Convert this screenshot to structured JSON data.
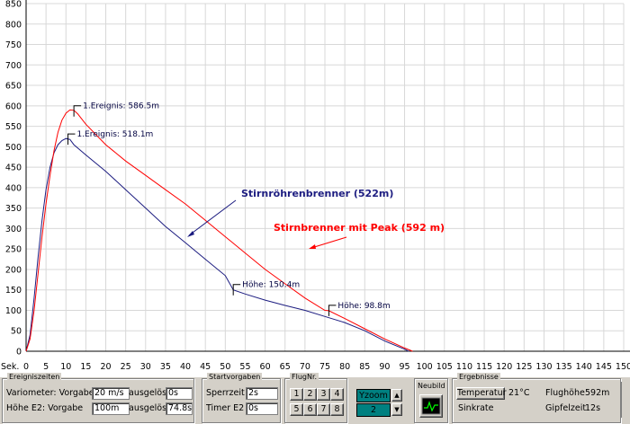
{
  "chart_data": {
    "type": "line",
    "x_axis_unit": "Sek.",
    "xlim": [
      0,
      150
    ],
    "ylim": [
      0,
      850
    ],
    "x_ticks": [
      0,
      5,
      10,
      15,
      20,
      25,
      30,
      35,
      40,
      45,
      50,
      55,
      60,
      65,
      70,
      75,
      80,
      85,
      90,
      95,
      100,
      105,
      110,
      115,
      120,
      125,
      130,
      135,
      140,
      145,
      150
    ],
    "y_ticks": [
      0,
      50,
      100,
      150,
      200,
      250,
      300,
      350,
      400,
      450,
      500,
      550,
      600,
      650,
      700,
      750,
      800,
      850
    ],
    "grid": true,
    "series": [
      {
        "name": "Stirnröhrenbrenner (522m)",
        "color": "#1c1c80",
        "points": [
          [
            0,
            0
          ],
          [
            1,
            40
          ],
          [
            2,
            130
          ],
          [
            3,
            230
          ],
          [
            4,
            320
          ],
          [
            5,
            395
          ],
          [
            6,
            450
          ],
          [
            7,
            485
          ],
          [
            8,
            505
          ],
          [
            9,
            515
          ],
          [
            10,
            520
          ],
          [
            11,
            518
          ],
          [
            12,
            505
          ],
          [
            15,
            480
          ],
          [
            20,
            440
          ],
          [
            25,
            395
          ],
          [
            30,
            350
          ],
          [
            35,
            305
          ],
          [
            40,
            265
          ],
          [
            45,
            225
          ],
          [
            50,
            185
          ],
          [
            52,
            150
          ],
          [
            55,
            140
          ],
          [
            60,
            125
          ],
          [
            65,
            112
          ],
          [
            70,
            100
          ],
          [
            75,
            85
          ],
          [
            80,
            70
          ],
          [
            85,
            50
          ],
          [
            90,
            25
          ],
          [
            95,
            5
          ],
          [
            96,
            0
          ]
        ]
      },
      {
        "name": "Stirnbrenner mit Peak (592 m)",
        "color": "#ff0000",
        "points": [
          [
            0,
            0
          ],
          [
            1,
            30
          ],
          [
            2,
            100
          ],
          [
            3,
            190
          ],
          [
            4,
            280
          ],
          [
            5,
            360
          ],
          [
            6,
            430
          ],
          [
            7,
            490
          ],
          [
            8,
            535
          ],
          [
            9,
            565
          ],
          [
            10,
            582
          ],
          [
            11,
            590
          ],
          [
            12,
            589
          ],
          [
            13,
            580
          ],
          [
            15,
            555
          ],
          [
            20,
            505
          ],
          [
            25,
            465
          ],
          [
            30,
            430
          ],
          [
            35,
            395
          ],
          [
            40,
            360
          ],
          [
            45,
            320
          ],
          [
            50,
            280
          ],
          [
            55,
            240
          ],
          [
            60,
            200
          ],
          [
            65,
            165
          ],
          [
            70,
            130
          ],
          [
            75,
            100
          ],
          [
            76,
            99
          ],
          [
            80,
            80
          ],
          [
            85,
            55
          ],
          [
            90,
            30
          ],
          [
            95,
            8
          ],
          [
            97,
            0
          ]
        ]
      }
    ],
    "annotations": [
      {
        "text": "1.Ereignis: 586.5m",
        "x": 12,
        "y": 587
      },
      {
        "text": "1.Ereignis: 518.1m",
        "x": 10.5,
        "y": 518
      },
      {
        "text": "Höhe: 150.4m",
        "x": 52,
        "y": 150
      },
      {
        "text": "Höhe: 98.8m",
        "x": 76,
        "y": 99
      }
    ]
  },
  "ereigniszeiten": {
    "title": "Ereigniszeiten",
    "row1_label": "Variometer: Vorgabe",
    "row1_value": "20 m/s",
    "row1_ausgeloest_label": "ausgelöst",
    "row1_ausgeloest_value": "0s",
    "row2_label": "Höhe E2: Vorgabe",
    "row2_value": "100m",
    "row2_ausgeloest_label": "ausgelöst",
    "row2_ausgeloest_value": "74.8s"
  },
  "startvorgaben": {
    "title": "Startvorgaben",
    "sperrzeit_label": "Sperrzeit",
    "sperrzeit_value": "2s",
    "timer_label": "Timer E2",
    "timer_value": "0s"
  },
  "flugnr": {
    "title": "FlugNr.",
    "buttons": [
      "1",
      "2",
      "3",
      "4",
      "5",
      "6",
      "7",
      "8"
    ]
  },
  "yzoom": {
    "label": "Yzoom",
    "value": "2"
  },
  "neubild": {
    "label": "Neubild"
  },
  "ergebnisse": {
    "title": "Ergebnisse",
    "temperatur_button": "Temperatur",
    "temperatur_value": "21°C",
    "flughoehe_label": "Flughöhe",
    "flughoehe_value": "592m",
    "sinkrate_label": "Sinkrate",
    "gipfelzeit_label": "Gipfelzeit",
    "gipfelzeit_value": "12s"
  }
}
